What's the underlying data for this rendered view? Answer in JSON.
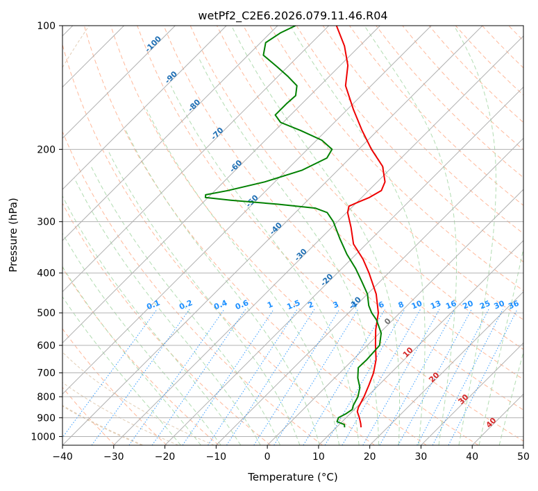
{
  "chart_data": {
    "type": "skew-t",
    "title": "wetPf2_C2E6.2026.079.11.46.R04",
    "xlabel": "Temperature (°C)",
    "ylabel": "Pressure (hPa)",
    "xlim": [
      -40,
      50
    ],
    "ylim": [
      1050,
      100
    ],
    "x_ticks": [
      -40,
      -30,
      -20,
      -10,
      0,
      10,
      20,
      30,
      40,
      50
    ],
    "x_tick_labels": [
      "−40",
      "−30",
      "−20",
      "−10",
      "0",
      "10",
      "20",
      "30",
      "40",
      "50"
    ],
    "y_ticks": [
      100,
      200,
      300,
      400,
      500,
      600,
      700,
      800,
      900,
      1000
    ],
    "y_tick_labels": [
      "100",
      "200",
      "300",
      "400",
      "500",
      "600",
      "700",
      "800",
      "900",
      "1000"
    ],
    "skew_degrees": 45,
    "colors": {
      "temperature": "#ee0000",
      "dewpoint": "#008000",
      "isotherm": "#b0b0b0",
      "isobar": "#b0b0b0",
      "dry_adiabat": "#ffb08f",
      "moist_adiabat": "#a8d8a8",
      "mixing_ratio": "#1e90ff",
      "theta_e": "#d4b896",
      "hgz_label": "#1f6fb4"
    },
    "series": [
      {
        "name": "Temperature",
        "color": "#ee0000",
        "points": [
          {
            "p": 950,
            "t": 14.8
          },
          {
            "p": 930,
            "t": 14.0
          },
          {
            "p": 900,
            "t": 12.6
          },
          {
            "p": 870,
            "t": 11.0
          },
          {
            "p": 850,
            "t": 10.4
          },
          {
            "p": 800,
            "t": 9.4
          },
          {
            "p": 750,
            "t": 8.1
          },
          {
            "p": 700,
            "t": 6.6
          },
          {
            "p": 650,
            "t": 4.5
          },
          {
            "p": 600,
            "t": 1.6
          },
          {
            "p": 550,
            "t": -1.4
          },
          {
            "p": 500,
            "t": -4.2
          },
          {
            "p": 450,
            "t": -8.3
          },
          {
            "p": 400,
            "t": -13.8
          },
          {
            "p": 370,
            "t": -17.7
          },
          {
            "p": 340,
            "t": -22.5
          },
          {
            "p": 310,
            "t": -26.2
          },
          {
            "p": 285,
            "t": -29.8
          },
          {
            "p": 275,
            "t": -30.8
          },
          {
            "p": 268,
            "t": -29.6
          },
          {
            "p": 262,
            "t": -28.5
          },
          {
            "p": 252,
            "t": -27.5
          },
          {
            "p": 240,
            "t": -28.5
          },
          {
            "p": 220,
            "t": -32.0
          },
          {
            "p": 200,
            "t": -37.5
          },
          {
            "p": 180,
            "t": -43.0
          },
          {
            "p": 160,
            "t": -48.8
          },
          {
            "p": 140,
            "t": -55.0
          },
          {
            "p": 125,
            "t": -58.5
          },
          {
            "p": 112,
            "t": -63.0
          },
          {
            "p": 100,
            "t": -68.5
          }
        ]
      },
      {
        "name": "Dewpoint",
        "color": "#008000",
        "points": [
          {
            "p": 950,
            "t": 11.6
          },
          {
            "p": 935,
            "t": 11.0
          },
          {
            "p": 920,
            "t": 9.0
          },
          {
            "p": 900,
            "t": 8.5
          },
          {
            "p": 880,
            "t": 9.2
          },
          {
            "p": 860,
            "t": 9.6
          },
          {
            "p": 840,
            "t": 9.0
          },
          {
            "p": 800,
            "t": 8.2
          },
          {
            "p": 760,
            "t": 6.8
          },
          {
            "p": 720,
            "t": 4.5
          },
          {
            "p": 680,
            "t": 2.6
          },
          {
            "p": 650,
            "t": 2.7
          },
          {
            "p": 600,
            "t": 2.4
          },
          {
            "p": 560,
            "t": 0.3
          },
          {
            "p": 520,
            "t": -3.2
          },
          {
            "p": 500,
            "t": -5.5
          },
          {
            "p": 480,
            "t": -7.5
          },
          {
            "p": 450,
            "t": -10.0
          },
          {
            "p": 420,
            "t": -13.5
          },
          {
            "p": 390,
            "t": -17.3
          },
          {
            "p": 360,
            "t": -21.8
          },
          {
            "p": 330,
            "t": -26.2
          },
          {
            "p": 300,
            "t": -30.8
          },
          {
            "p": 285,
            "t": -33.8
          },
          {
            "p": 278,
            "t": -37.0
          },
          {
            "p": 272,
            "t": -45.0
          },
          {
            "p": 266,
            "t": -55.0
          },
          {
            "p": 262,
            "t": -60.5
          },
          {
            "p": 258,
            "t": -61.0
          },
          {
            "p": 252,
            "t": -57.5
          },
          {
            "p": 240,
            "t": -52.0
          },
          {
            "p": 225,
            "t": -47.0
          },
          {
            "p": 210,
            "t": -44.5
          },
          {
            "p": 200,
            "t": -45.2
          },
          {
            "p": 190,
            "t": -49.0
          },
          {
            "p": 180,
            "t": -55.0
          },
          {
            "p": 172,
            "t": -60.5
          },
          {
            "p": 165,
            "t": -63.0
          },
          {
            "p": 155,
            "t": -63.0
          },
          {
            "p": 148,
            "t": -62.8
          },
          {
            "p": 140,
            "t": -64.5
          },
          {
            "p": 133,
            "t": -68.0
          },
          {
            "p": 126,
            "t": -72.0
          },
          {
            "p": 118,
            "t": -77.0
          },
          {
            "p": 110,
            "t": -79.0
          },
          {
            "p": 104,
            "t": -78.0
          },
          {
            "p": 100,
            "t": -76.5
          }
        ]
      }
    ],
    "isotherm_labels": [
      {
        "t": 0,
        "p": 530,
        "text": "0",
        "color": "#707070"
      },
      {
        "t": 10,
        "p": 630,
        "text": "10",
        "color": "#d62728"
      },
      {
        "t": 20,
        "p": 725,
        "text": "20",
        "color": "#d62728"
      },
      {
        "t": 30,
        "p": 820,
        "text": "30",
        "color": "#d62728"
      },
      {
        "t": 40,
        "p": 935,
        "text": "40",
        "color": "#d62728"
      }
    ],
    "hgz_isotherm_labels": [
      {
        "t": -100,
        "p": 112,
        "text": "-100"
      },
      {
        "t": -90,
        "p": 135,
        "text": "-90"
      },
      {
        "t": -80,
        "p": 158,
        "text": "-80"
      },
      {
        "t": -70,
        "p": 185,
        "text": "-70"
      },
      {
        "t": -60,
        "p": 222,
        "text": "-60"
      },
      {
        "t": -50,
        "p": 270,
        "text": "-50"
      },
      {
        "t": -40,
        "p": 315,
        "text": "-40"
      },
      {
        "t": -30,
        "p": 365,
        "text": "-30"
      },
      {
        "t": -20,
        "p": 420,
        "text": "-20"
      },
      {
        "t": -10,
        "p": 478,
        "text": "-10"
      }
    ],
    "mixing_ratio_label_pressure": 490,
    "mixing_ratios": [
      {
        "w": 0.1,
        "text": "0.1"
      },
      {
        "w": 0.2,
        "text": "0.2"
      },
      {
        "w": 0.4,
        "text": "0.4"
      },
      {
        "w": 0.6,
        "text": "0.6"
      },
      {
        "w": 1,
        "text": "1"
      },
      {
        "w": 1.5,
        "text": "1.5"
      },
      {
        "w": 2,
        "text": "2"
      },
      {
        "w": 3,
        "text": "3"
      },
      {
        "w": 4,
        "text": "4"
      },
      {
        "w": 6,
        "text": "6"
      },
      {
        "w": 8,
        "text": "8"
      },
      {
        "w": 10,
        "text": "10"
      },
      {
        "w": 13,
        "text": "13"
      },
      {
        "w": 16,
        "text": "16"
      },
      {
        "w": 20,
        "text": "20"
      },
      {
        "w": 25,
        "text": "25"
      },
      {
        "w": 30,
        "text": "30"
      },
      {
        "w": 36,
        "text": "36"
      }
    ]
  }
}
